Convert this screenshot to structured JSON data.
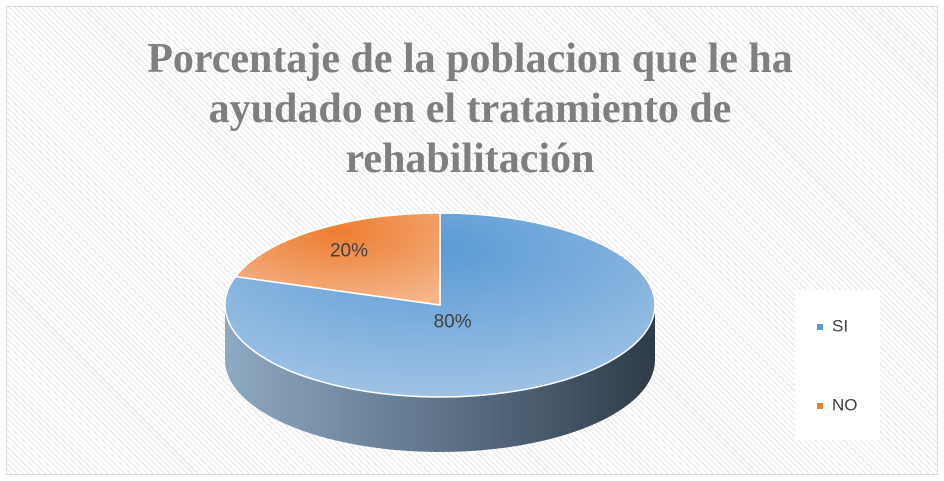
{
  "chart_data": {
    "type": "pie",
    "title": "Porcentaje de la poblacion que le ha ayudado en el tratamiento de rehabilitación",
    "categories": [
      "SI",
      "NO"
    ],
    "values": [
      80,
      20
    ],
    "value_labels": [
      "80%",
      "20%"
    ],
    "colors": [
      "#5b9bd5",
      "#ed7d31"
    ],
    "legend": "right"
  }
}
